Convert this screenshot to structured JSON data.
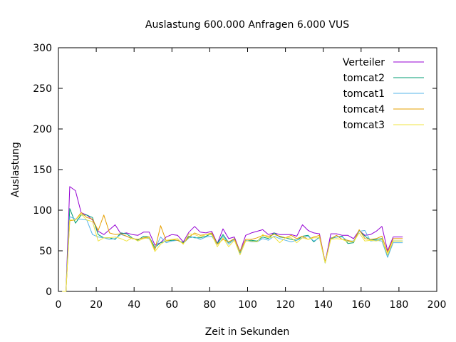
{
  "chart_data": {
    "type": "line",
    "title": "Auslastung 600.000 Anfragen 6.000 VUS",
    "xlabel": "Zeit in Sekunden",
    "ylabel": "Auslastung",
    "xlim": [
      0,
      200
    ],
    "ylim": [
      0,
      300
    ],
    "xticks": [
      0,
      20,
      40,
      60,
      80,
      100,
      120,
      140,
      160,
      180,
      200
    ],
    "yticks": [
      0,
      50,
      100,
      150,
      200,
      250,
      300
    ],
    "grid": false,
    "legend_position": "top-right",
    "x": [
      2,
      4,
      6,
      9,
      12,
      15,
      18,
      21,
      24,
      27,
      30,
      33,
      36,
      39,
      42,
      45,
      48,
      51,
      54,
      57,
      60,
      63,
      66,
      69,
      72,
      75,
      78,
      81,
      84,
      87,
      90,
      93,
      96,
      99,
      102,
      105,
      108,
      111,
      114,
      117,
      120,
      123,
      126,
      129,
      132,
      135,
      138,
      141,
      144,
      147,
      150,
      153,
      156,
      159,
      162,
      165,
      168,
      171,
      174,
      177,
      180,
      182
    ],
    "series": [
      {
        "name": "Verteiler",
        "color": "#9400d3",
        "values": [
          0,
          0,
          129,
          124,
          97,
          94,
          88,
          74,
          70,
          76,
          82,
          71,
          72,
          70,
          69,
          73,
          73,
          57,
          60,
          67,
          70,
          69,
          61,
          73,
          80,
          73,
          72,
          74,
          59,
          77,
          65,
          67,
          49,
          69,
          72,
          74,
          76,
          70,
          72,
          70,
          70,
          70,
          68,
          82,
          75,
          72,
          71,
          36,
          71,
          71,
          69,
          69,
          65,
          75,
          69,
          70,
          74,
          80,
          50,
          67,
          67,
          67
        ]
      },
      {
        "name": "tomcat2",
        "color": "#009e73",
        "values": [
          0,
          0,
          102,
          84,
          94,
          94,
          91,
          70,
          66,
          66,
          64,
          72,
          71,
          66,
          63,
          68,
          67,
          54,
          60,
          62,
          63,
          63,
          60,
          68,
          66,
          66,
          68,
          71,
          59,
          70,
          60,
          65,
          47,
          62,
          63,
          62,
          67,
          65,
          72,
          67,
          66,
          64,
          63,
          68,
          69,
          61,
          67,
          35,
          65,
          67,
          68,
          59,
          60,
          75,
          68,
          63,
          64,
          65,
          42,
          62,
          62,
          62
        ]
      },
      {
        "name": "tomcat1",
        "color": "#56b4e9",
        "values": [
          0,
          0,
          92,
          89,
          89,
          88,
          70,
          67,
          66,
          64,
          65,
          70,
          68,
          65,
          64,
          66,
          65,
          52,
          67,
          60,
          62,
          63,
          59,
          66,
          67,
          64,
          67,
          68,
          58,
          68,
          58,
          64,
          46,
          63,
          61,
          61,
          65,
          63,
          68,
          65,
          63,
          61,
          63,
          66,
          68,
          62,
          66,
          35,
          66,
          67,
          67,
          62,
          62,
          74,
          75,
          62,
          63,
          62,
          42,
          60,
          60,
          60
        ]
      },
      {
        "name": "tomcat4",
        "color": "#e69f00",
        "values": [
          0,
          0,
          87,
          88,
          97,
          91,
          89,
          75,
          94,
          72,
          70,
          71,
          68,
          65,
          64,
          66,
          67,
          51,
          81,
          62,
          64,
          63,
          59,
          67,
          72,
          69,
          70,
          72,
          58,
          64,
          61,
          65,
          49,
          64,
          64,
          66,
          69,
          68,
          70,
          68,
          66,
          69,
          65,
          68,
          64,
          67,
          69,
          36,
          65,
          69,
          64,
          63,
          61,
          76,
          65,
          64,
          65,
          68,
          48,
          65,
          65,
          65
        ]
      },
      {
        "name": "tomcat3",
        "color": "#f0e442",
        "values": [
          0,
          0,
          88,
          88,
          95,
          88,
          86,
          62,
          66,
          66,
          67,
          65,
          62,
          66,
          62,
          65,
          66,
          49,
          58,
          63,
          64,
          65,
          58,
          71,
          70,
          67,
          70,
          70,
          55,
          66,
          55,
          63,
          45,
          62,
          62,
          61,
          70,
          66,
          67,
          60,
          66,
          66,
          60,
          66,
          64,
          66,
          66,
          35,
          64,
          65,
          64,
          61,
          61,
          72,
          62,
          63,
          62,
          64,
          45,
          62,
          62,
          62
        ]
      }
    ]
  }
}
